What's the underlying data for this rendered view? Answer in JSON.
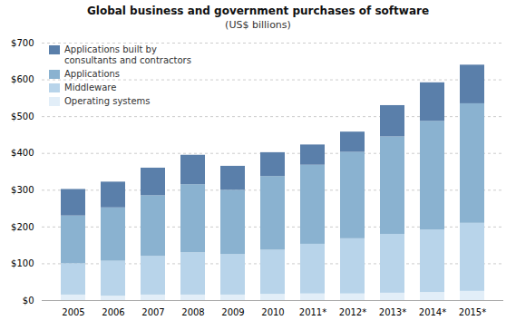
{
  "chart_data": {
    "type": "bar",
    "stacked": true,
    "title": "Global business and government purchases of software",
    "subtitle": "(US$ billions)",
    "categories": [
      "2005",
      "2006",
      "2007",
      "2008",
      "2009",
      "2010",
      "2011*",
      "2012*",
      "2013*",
      "2014*",
      "2015*"
    ],
    "series": [
      {
        "name": "Operating systems",
        "color": "#e2eef8",
        "values": [
          15,
          12,
          15,
          15,
          15,
          17,
          18,
          18,
          20,
          22,
          25
        ]
      },
      {
        "name": "Middleware",
        "color": "#b8d4ea",
        "values": [
          85,
          95,
          105,
          115,
          110,
          120,
          135,
          150,
          160,
          170,
          185
        ]
      },
      {
        "name": "Applications",
        "color": "#8ab2d0",
        "values": [
          130,
          145,
          165,
          185,
          175,
          200,
          215,
          235,
          265,
          295,
          325
        ]
      },
      {
        "name": "Applications built by\nconsultants and contractors",
        "color": "#5a7faa",
        "values": [
          72,
          70,
          75,
          80,
          65,
          65,
          55,
          55,
          85,
          105,
          105
        ]
      }
    ],
    "ylim": [
      0,
      700
    ],
    "yticks": [
      {
        "value": 0,
        "label": "$0"
      },
      {
        "value": 100,
        "label": "$100"
      },
      {
        "value": 200,
        "label": "$200"
      },
      {
        "value": 300,
        "label": "$300"
      },
      {
        "value": 400,
        "label": "$400"
      },
      {
        "value": 500,
        "label": "$500"
      },
      {
        "value": 600,
        "label": "$600"
      },
      {
        "value": 700,
        "label": "$700"
      }
    ],
    "grid": true,
    "legend": "upper left"
  }
}
